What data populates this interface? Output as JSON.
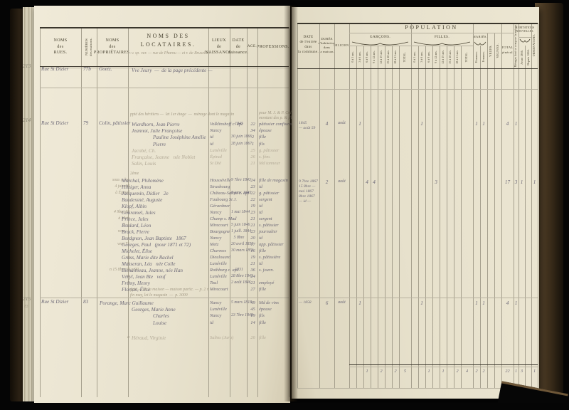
{
  "colors": {
    "page": "#e9e3cf",
    "ink": "#6e6a78",
    "pencil": "#a39a86",
    "print": "#46402f",
    "cover": "#3a2c1a"
  },
  "left_page": {
    "header": {
      "rues": "NOMS\ndes\nRUES.",
      "maisons": "NUMÉROS\ndes maisons.",
      "proprietaires": "NOMS\ndes\nPROPRIÉTAIRES.",
      "locataires": "NOMS DES LOCATAIRES.",
      "locataires_note": "v. sp. var. — rue de Pharou — et r. de Bruxelles —",
      "lieux": "LIEUX\nde\nNAISSANCE.",
      "date_naissance": "DATE\nde\nnaissance.",
      "age": "AGE.",
      "professions": "PROFESSIONS."
    },
    "blocks": [
      {
        "margin_no": "213",
        "street": "Rue St Dizier",
        "house_no": "77b",
        "owner": "Goetz.",
        "tenants": [
          {
            "name": "Vve Jeury  —  de la page précédente —",
            "wide": true
          }
        ]
      },
      {
        "margin_no": "214",
        "street": "Rue St Dizier",
        "house_no": "79",
        "owner": "Colin, pâtissier",
        "pencil_notes": [
          "ppté des héritiers —  let 1er étage  —  ménage dont le magasin"
        ],
        "prof_notes": [
          "pour M. J. & P. Colin",
          "montant des p. & fils  4"
        ],
        "tenants": [
          {
            "name": "Wierdhorn, Jean Pierre",
            "birthplace": "Volklinshoff c. apt",
            "birthdate": "1845",
            "age": "22",
            "profession": "pâtissier confiseur"
          },
          {
            "name": "Jeannot, Julie Françoise",
            "birthplace": "Nancy",
            "age": "34",
            "profession": "épouse"
          },
          {
            "name": "Pauline Joséphine Amélie",
            "indent": 1,
            "birthplace": "id",
            "birthdate": "30 juin 1866",
            "age": "2",
            "profession": "fille"
          },
          {
            "name": "Pierre",
            "indent": 1,
            "birthplace": "id",
            "birthdate": "28 juin 1867",
            "age": "1",
            "profession": "fils"
          },
          {
            "name": "Jacobé, Ch.",
            "faded": true,
            "birthplace": "Lunéville",
            "age": "25",
            "profession": "g. pâtissier"
          },
          {
            "name": "Française, Jeanne",
            "suffix": "née Noblet",
            "faded": true,
            "birthplace": "Épinal",
            "age": "26",
            "profession": "s. fém."
          },
          {
            "name": "Salin, Louis",
            "faded": true,
            "birthplace": "St Dié",
            "age": "21",
            "profession": "Md tanneur"
          }
        ]
      },
      {
        "margin_no": "",
        "pencil_notes": [
          "2ème"
        ],
        "tenants": [
          {
            "pre": "sous s. loc",
            "name": "Marchal, Philomène",
            "birthplace": "Housséville",
            "birthdate": "9 7bre 1843",
            "age": "24",
            "profession": "fille de magasin"
          },
          {
            "pre": "4 juin 68",
            "name": "Hilziger, Anna",
            "birthplace": "Strasbourg",
            "age": "23",
            "profession": "id"
          },
          {
            "pre": "à Épinal",
            "name": "Jacquemin, Didier",
            "suffix": "2e",
            "birthplace": "Château-Salins c. apt",
            "birthdate": "6 janv. 1845",
            "age": "22",
            "profession": "g. pâtissier"
          },
          {
            "name": "Baudessné, Auguste",
            "birthplace": "Faubourg St J.",
            "age": "22",
            "profession": "sergent"
          },
          {
            "name": "Klopf, Albin",
            "birthplace": "Gérardmer",
            "age": "19",
            "profession": "id"
          },
          {
            "pre": "4 9bre 68",
            "name": "Gouramel, Jules",
            "birthplace": "Nancy",
            "birthdate": "1 mai 1844",
            "age": "23",
            "profession": "id"
          },
          {
            "pre": "à Metz",
            "name": "Prince, Jules",
            "birthplace": "Champ s. Mad",
            "age": "21",
            "profession": "sergent"
          },
          {
            "pre": "7 —",
            "name": "Boulard, Léon",
            "birthplace": "Mirecourt",
            "birthdate": "5 juin 1846",
            "age": "21",
            "profession": "s. pâtissier"
          },
          {
            "pre": "vers —",
            "name": "Brack, Pierre",
            "birthplace": "Bourgogne",
            "birthdate": "1 juill. 1844",
            "age": "23",
            "profession": "journalier"
          },
          {
            "name": "Bordgnon, Jean Baptiste",
            "suffix": "1867",
            "birthplace": "Nancy",
            "birthdate": "5 8bre",
            "age": "20",
            "profession": "id"
          },
          {
            "pre": "vers 71",
            "name": "Georges, Paul",
            "suffix": "(pour 1871 et 72)",
            "birthplace": "Metz",
            "birthdate": "20 avril 1850",
            "age": "17",
            "profession": "app. pâtissier"
          },
          {
            "name": "Michelet, Élise",
            "birthplace": "Charmes",
            "birthdate": "30 mars 1851",
            "age": "16",
            "profession": "fille"
          },
          {
            "pre": "a",
            "name": "Grass, Marie dite Rachel",
            "birthplace": "Dieulouard",
            "age": "19",
            "profession": "s. pâtissière"
          },
          {
            "pre": "a",
            "name": "Masseran, Léa",
            "suffix": "née Colle",
            "birthplace": "Lunéville",
            "age": "21",
            "profession": "id"
          },
          {
            "pre": "n 15 8bre 66 p.90",
            "name": "Bienaimeau, Jeanne, née Han",
            "birthplace": "Rothburg c. apt",
            "birthdate": "1831",
            "age": "36",
            "profession": "s. journ."
          },
          {
            "pre": "a",
            "name": "Véryl, Jean Bte",
            "suffix": "veuf",
            "birthplace": "Lunéville",
            "birthdate": "28 8bre 1843",
            "age": "24",
            "profession": ""
          },
          {
            "pre": "a",
            "name": "Frémy, Henry",
            "birthplace": "Toul",
            "birthdate": "2 août 1846",
            "age": "21",
            "profession": "employé"
          },
          {
            "name": "Florian, Élise",
            "birthplace": "Mirecourt",
            "age": "27",
            "profession": "fille"
          }
        ]
      },
      {
        "margin_no": "215",
        "margin_sub": "83",
        "street": "Rue St Dizier",
        "house_no": "83",
        "owner": "",
        "pencil_notes": [
          "ppté — let la maison — maison partic. — p. 2 r. —",
          "fin may, let le magasin  —  p. 3000"
        ],
        "tenants": [
          {
            "name": "Porange, Marc Guillaume",
            "shift": -45,
            "birthplace": "Nancy",
            "birthdate": "5 mars 1818",
            "age": "49",
            "profession": "Md de vins"
          },
          {
            "name": "Georges, Marie Anne",
            "birthplace": "Lunéville",
            "age": "45",
            "profession": "épouse"
          },
          {
            "name": "Charles",
            "indent": 1,
            "birthplace": "Nancy",
            "birthdate": "23 7bre 1848",
            "age": "19",
            "profession": "fils"
          },
          {
            "name": "Louise",
            "indent": 1,
            "birthplace": "id",
            "age": "14",
            "profession": "fille"
          },
          {
            "gap": 12,
            "pre": "a",
            "name": "Héraud, Virginie",
            "faded": true,
            "birthplace": "Salins (Jura)",
            "age": "26",
            "profession": "fille"
          }
        ]
      }
    ]
  },
  "right_page": {
    "header": {
      "date_entree": "DATE\nde l'entrée\ndans\nla commune.",
      "duree": "DURÉE\nd'habitation\ndans\nla maison.",
      "milicien": "MILICIEN.",
      "population": "POPULATION",
      "garcons": "GARÇONS.",
      "filles": "FILLES.",
      "maries": "MARIÉS.",
      "ages": [
        "0 à 3 ans.",
        "3 à 6 ans.",
        "6 à 9 ans.",
        "9 à 12 ans.",
        "12 à 15 ans.",
        "15 à 18 ans.",
        "18 à 21 ans."
      ],
      "total": "TOTAL.",
      "hommes": "Hommes.",
      "femmes": "Femmes.",
      "veufs": "VEUFS.",
      "veuves": "VEUVES.",
      "total_general": "TOTAL\ngénéral.",
      "menages": "Ménages dont se compose la maison.",
      "habitations": "HABITATIONS\nNOUVELLES.",
      "avant": "Avant 1866.",
      "depuis": "Depuis 1866.",
      "observations": "OBSERVATIONS."
    },
    "rows": [
      {
        "entry": "214",
        "date_lines": [
          "1845",
          "— août 59"
        ],
        "duration": "4",
        "milicien": "août",
        "marks": [
          {
            "c": "g2",
            "v": "1"
          },
          {
            "c": "f2",
            "v": "1"
          },
          {
            "c": "mh",
            "v": "1"
          },
          {
            "c": "mf",
            "v": "1"
          },
          {
            "c": "tg",
            "v": "4"
          },
          {
            "c": "men",
            "v": "1"
          }
        ]
      },
      {
        "entry": "214 bis",
        "date_lines": [
          "9 7bre 1867",
          "15 8bre —",
          "mai 1867",
          "8bre 1867",
          "— id —"
        ],
        "duration": "2",
        "milicien": "août",
        "marks": [
          {
            "c": "g3",
            "v": "4"
          },
          {
            "c": "g4",
            "v": "4"
          },
          {
            "c": "f4",
            "v": "3"
          },
          {
            "c": "tg",
            "v": "17"
          },
          {
            "c": "men",
            "v": "3"
          },
          {
            "c": "h1",
            "v": "1"
          },
          {
            "c": "obs",
            "v": "1"
          }
        ]
      },
      {
        "entry": "215",
        "date_lines": [
          "— 1858"
        ],
        "duration": "6",
        "milicien": "août",
        "marks": [
          {
            "c": "g2",
            "v": "1"
          },
          {
            "c": "f2",
            "v": "1"
          },
          {
            "c": "mh",
            "v": "1"
          },
          {
            "c": "mf",
            "v": "1"
          },
          {
            "c": "tg",
            "v": "4"
          },
          {
            "c": "men",
            "v": "1"
          }
        ]
      }
    ],
    "totals": {
      "marks": [
        {
          "c": "g3",
          "v": "1"
        },
        {
          "c": "g5",
          "v": "2"
        },
        {
          "c": "g7",
          "v": "2"
        },
        {
          "c": "gt",
          "v": "5"
        },
        {
          "c": "f3",
          "v": "1"
        },
        {
          "c": "f5",
          "v": "1"
        },
        {
          "c": "f7",
          "v": "2"
        },
        {
          "c": "ft",
          "v": "4"
        },
        {
          "c": "mh",
          "v": "2"
        },
        {
          "c": "mf",
          "v": "2"
        },
        {
          "c": "tg",
          "v": "22"
        },
        {
          "c": "men",
          "v": "1"
        },
        {
          "c": "h1",
          "v": "3"
        },
        {
          "c": "obs",
          "v": "1"
        }
      ]
    }
  }
}
